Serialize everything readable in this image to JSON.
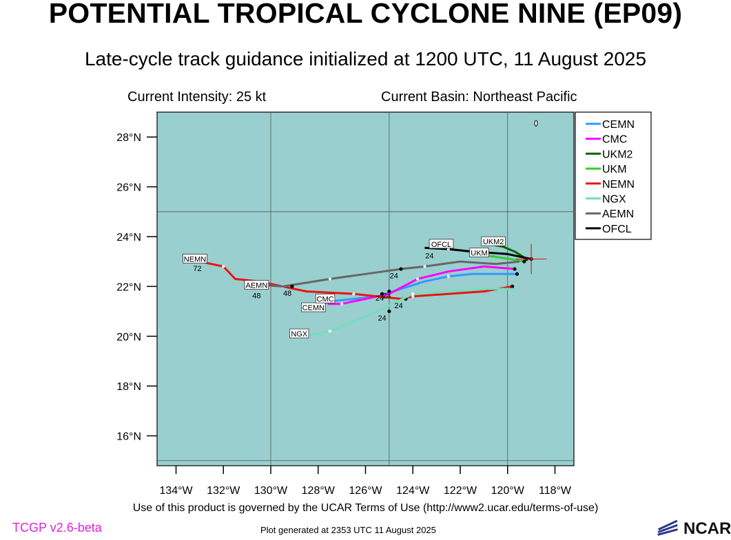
{
  "header": {
    "title": "POTENTIAL TROPICAL CYCLONE NINE (EP09)",
    "subtitle": "Late-cycle track guidance initialized at 1200 UTC, 11 August 2025",
    "intensity": "Current Intensity: 25 kt",
    "basin": "Current Basin: Northeast Pacific"
  },
  "footer": {
    "terms": "Use of this product is governed by the UCAR Terms of Use (http://www2.ucar.edu/terms-of-use)",
    "version": "TCGP v2.6-beta",
    "generated": "Plot generated at 2353 UTC   11 August 2025",
    "logo_text": "NCAR"
  },
  "colors": {
    "ocean": "#99cfcf",
    "grid": "#555555",
    "current_position_marker": "#e02020"
  },
  "chart_data": {
    "type": "map-track",
    "lon_range": [
      -134.8,
      -117.2
    ],
    "lat_range": [
      14.8,
      29.0
    ],
    "lon_ticks": [
      -134,
      -132,
      -130,
      -128,
      -126,
      -124,
      -122,
      -120,
      -118
    ],
    "lon_tick_labels": [
      "134°W",
      "132°W",
      "130°W",
      "128°W",
      "126°W",
      "124°W",
      "122°W",
      "120°W",
      "118°W"
    ],
    "lat_ticks": [
      16,
      18,
      20,
      22,
      24,
      26,
      28
    ],
    "lat_tick_labels": [
      "16°N",
      "18°N",
      "20°N",
      "22°N",
      "24°N",
      "26°N",
      "28°N"
    ],
    "grid_lon": [
      -130,
      -125,
      -120
    ],
    "grid_lat": [
      15,
      25
    ],
    "current_position": {
      "lon": -119.0,
      "lat": 23.1
    },
    "legend_position": "top-right",
    "series": [
      {
        "name": "CEMN",
        "color": "#3399ff",
        "points": [
          [
            -119.6,
            22.5
          ],
          [
            -120.5,
            22.5
          ],
          [
            -121.5,
            22.5
          ],
          [
            -122.5,
            22.4
          ],
          [
            -123.5,
            22.2
          ],
          [
            -124.5,
            21.9
          ],
          [
            -125.5,
            21.6
          ],
          [
            -126.5,
            21.5
          ],
          [
            -127.5,
            21.4
          ],
          [
            -128.0,
            21.2
          ]
        ],
        "markers": [
          [
            -119.6,
            22.5
          ],
          [
            -125.0,
            21.8
          ]
        ],
        "labels": [
          {
            "lon": -125.1,
            "lat": 21.8,
            "text": "24"
          }
        ],
        "end_label": {
          "lon": -128.2,
          "lat": 21.15,
          "text": "CEMN"
        }
      },
      {
        "name": "CMC",
        "color": "#ff00ff",
        "points": [
          [
            -119.7,
            22.7
          ],
          [
            -121.0,
            22.8
          ],
          [
            -122.5,
            22.6
          ],
          [
            -123.8,
            22.3
          ],
          [
            -125.0,
            21.7
          ],
          [
            -126.0,
            21.5
          ],
          [
            -127.0,
            21.3
          ],
          [
            -127.6,
            21.3
          ]
        ],
        "markers": [
          [
            -119.7,
            22.7
          ],
          [
            -125.3,
            21.7
          ]
        ],
        "labels": [
          {
            "lon": -125.4,
            "lat": 21.7,
            "text": "24"
          }
        ],
        "end_label": {
          "lon": -127.7,
          "lat": 21.5,
          "text": "CMC"
        }
      },
      {
        "name": "UKM2",
        "color": "#006600",
        "points": [
          [
            -119.2,
            23.1
          ],
          [
            -119.7,
            23.4
          ],
          [
            -120.2,
            23.6
          ],
          [
            -120.8,
            23.7
          ]
        ],
        "markers": [
          [
            -119.2,
            23.1
          ]
        ],
        "labels": [],
        "end_label": {
          "lon": -120.6,
          "lat": 23.8,
          "text": "UKM2"
        }
      },
      {
        "name": "UKM",
        "color": "#33cc33",
        "points": [
          [
            -119.3,
            23.0
          ],
          [
            -119.9,
            23.1
          ],
          [
            -120.6,
            23.2
          ],
          [
            -121.4,
            23.3
          ]
        ],
        "markers": [
          [
            -119.3,
            23.0
          ]
        ],
        "labels": [],
        "end_label": {
          "lon": -121.2,
          "lat": 23.35,
          "text": "UKM"
        }
      },
      {
        "name": "NEMN",
        "color": "#ee1111",
        "points": [
          [
            -119.8,
            22.0
          ],
          [
            -121.0,
            21.8
          ],
          [
            -122.5,
            21.7
          ],
          [
            -124.0,
            21.6
          ],
          [
            -124.5,
            21.5
          ],
          [
            -125.5,
            21.6
          ],
          [
            -126.5,
            21.7
          ],
          [
            -127.5,
            21.75
          ],
          [
            -128.5,
            21.8
          ],
          [
            -129.5,
            22.0
          ],
          [
            -130.5,
            22.2
          ],
          [
            -131.5,
            22.3
          ],
          [
            -132.0,
            22.8
          ],
          [
            -132.5,
            22.9
          ],
          [
            -133.0,
            23.0
          ]
        ],
        "markers": [
          [
            -119.8,
            22.0
          ],
          [
            -124.3,
            21.5
          ]
        ],
        "labels": [
          {
            "lon": -124.6,
            "lat": 21.4,
            "text": "24"
          },
          {
            "lon": -133.1,
            "lat": 22.9,
            "text": "72"
          }
        ],
        "end_label": {
          "lon": -133.2,
          "lat": 23.1,
          "text": "NEMN"
        }
      },
      {
        "name": "NGX",
        "color": "#77ddbb",
        "points": [
          [
            -119.7,
            21.9
          ],
          [
            -121.0,
            21.9
          ],
          [
            -122.5,
            21.8
          ],
          [
            -124.0,
            21.7
          ],
          [
            -125.5,
            21.0
          ],
          [
            -126.5,
            20.6
          ],
          [
            -127.5,
            20.2
          ],
          [
            -128.0,
            20.1
          ],
          [
            -128.5,
            20.0
          ]
        ],
        "markers": [
          [
            -125.0,
            21.0
          ]
        ],
        "labels": [
          {
            "lon": -125.3,
            "lat": 20.9,
            "text": "24"
          }
        ],
        "end_label": {
          "lon": -128.8,
          "lat": 20.1,
          "text": "NGX"
        }
      },
      {
        "name": "AEMN",
        "color": "#666666",
        "points": [
          [
            -119.5,
            23.0
          ],
          [
            -120.5,
            22.9
          ],
          [
            -122.0,
            23.0
          ],
          [
            -123.5,
            22.8
          ],
          [
            -124.5,
            22.7
          ],
          [
            -126.0,
            22.5
          ],
          [
            -127.5,
            22.3
          ],
          [
            -128.5,
            22.15
          ],
          [
            -129.5,
            22.0
          ],
          [
            -130.3,
            22.05
          ]
        ],
        "markers": [
          [
            -124.5,
            22.7
          ],
          [
            -129.1,
            22.0
          ]
        ],
        "labels": [
          {
            "lon": -124.8,
            "lat": 22.6,
            "text": "24"
          },
          {
            "lon": -129.3,
            "lat": 21.9,
            "text": "48"
          },
          {
            "lon": -130.6,
            "lat": 21.8,
            "text": "48"
          }
        ],
        "end_label": {
          "lon": -130.6,
          "lat": 22.05,
          "text": "AEMN"
        }
      },
      {
        "name": "OFCL",
        "color": "#000000",
        "points": [
          [
            -119.0,
            23.1
          ],
          [
            -120.0,
            23.3
          ],
          [
            -121.5,
            23.4
          ],
          [
            -122.5,
            23.5
          ],
          [
            -123.5,
            23.55
          ]
        ],
        "markers": [
          [
            -119.0,
            23.1
          ]
        ],
        "labels": [
          {
            "lon": -123.3,
            "lat": 23.4,
            "text": "24"
          }
        ],
        "end_label": {
          "lon": -122.8,
          "lat": 23.7,
          "text": "OFCL"
        }
      }
    ]
  }
}
